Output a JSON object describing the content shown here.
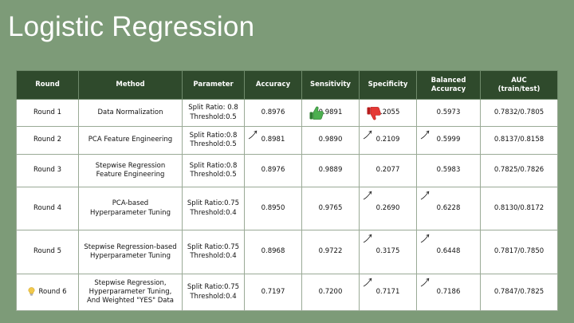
{
  "slide": {
    "title": "Logistic Regression"
  },
  "table": {
    "headers": {
      "round": "Round",
      "method": "Method",
      "parameter": "Parameter",
      "accuracy": "Accuracy",
      "sensitivity": "Sensitivity",
      "specificity": "Specificity",
      "balanced_line1": "Balanced",
      "balanced_line2": "Accuracy",
      "auc_line1": "AUC",
      "auc_line2": "(train/test)"
    },
    "rows": [
      {
        "round": "Round 1",
        "method_l1": "Data Normalization",
        "method_l2": "",
        "method_l3": "",
        "param_l1": "Split Ratio: 0.8",
        "param_l2": "Threshold:0.5",
        "accuracy": "0.8976",
        "sensitivity": "0.9891",
        "specificity": "0.2055",
        "balanced": "0.5973",
        "auc": "0.7832/0.7805"
      },
      {
        "round": "Round 2",
        "method_l1": "PCA Feature Engineering",
        "method_l2": "",
        "method_l3": "",
        "param_l1": "Split Ratio:0.8",
        "param_l2": "Threshold:0.5",
        "accuracy": "0.8981",
        "sensitivity": "0.9890",
        "specificity": "0.2109",
        "balanced": "0.5999",
        "auc": "0.8137/0.8158"
      },
      {
        "round": "Round 3",
        "method_l1": "Stepwise Regression",
        "method_l2": "Feature Engineering",
        "method_l3": "",
        "param_l1": "Split Ratio:0.8",
        "param_l2": "Threshold:0.5",
        "accuracy": "0.8976",
        "sensitivity": "0.9889",
        "specificity": "0.2077",
        "balanced": "0.5983",
        "auc": "0.7825/0.7826"
      },
      {
        "round": "Round 4",
        "method_l1": "PCA-based",
        "method_l2": "Hyperparameter Tuning",
        "method_l3": "",
        "param_l1": "Split Ratio:0.75",
        "param_l2": "Threshold:0.4",
        "accuracy": "0.8950",
        "sensitivity": "0.9765",
        "specificity": "0.2690",
        "balanced": "0.6228",
        "auc": "0.8130/0.8172"
      },
      {
        "round": "Round 5",
        "method_l1": "Stepwise Regression-based",
        "method_l2": "Hyperparameter Tuning",
        "method_l3": "",
        "param_l1": "Split Ratio:0.75",
        "param_l2": "Threshold:0.4",
        "accuracy": "0.8968",
        "sensitivity": "0.9722",
        "specificity": "0.3175",
        "balanced": "0.6448",
        "auc": "0.7817/0.7850"
      },
      {
        "round": "Round 6",
        "method_l1": "Stepwise Regression,",
        "method_l2": "Hyperparameter Tuning,",
        "method_l3": "And Weighted \"YES\" Data",
        "param_l1": "Split Ratio:0.75",
        "param_l2": "Threshold:0.4",
        "accuracy": "0.7197",
        "sensitivity": "0.7200",
        "specificity": "0.7171",
        "balanced": "0.7186",
        "auc": "0.7847/0.7825"
      }
    ]
  },
  "icons": {
    "thumbs_up": "thumbs-up-icon",
    "thumbs_down": "thumbs-down-icon",
    "trend_arrow": "trend-up-arrow-icon",
    "lightbulb": "lightbulb-icon"
  },
  "colors": {
    "background": "#7d9b78",
    "header_bg": "#2f4a2c",
    "thumbs_up": "#4caf50",
    "thumbs_down": "#e53935",
    "bulb": "#f2c94c"
  }
}
